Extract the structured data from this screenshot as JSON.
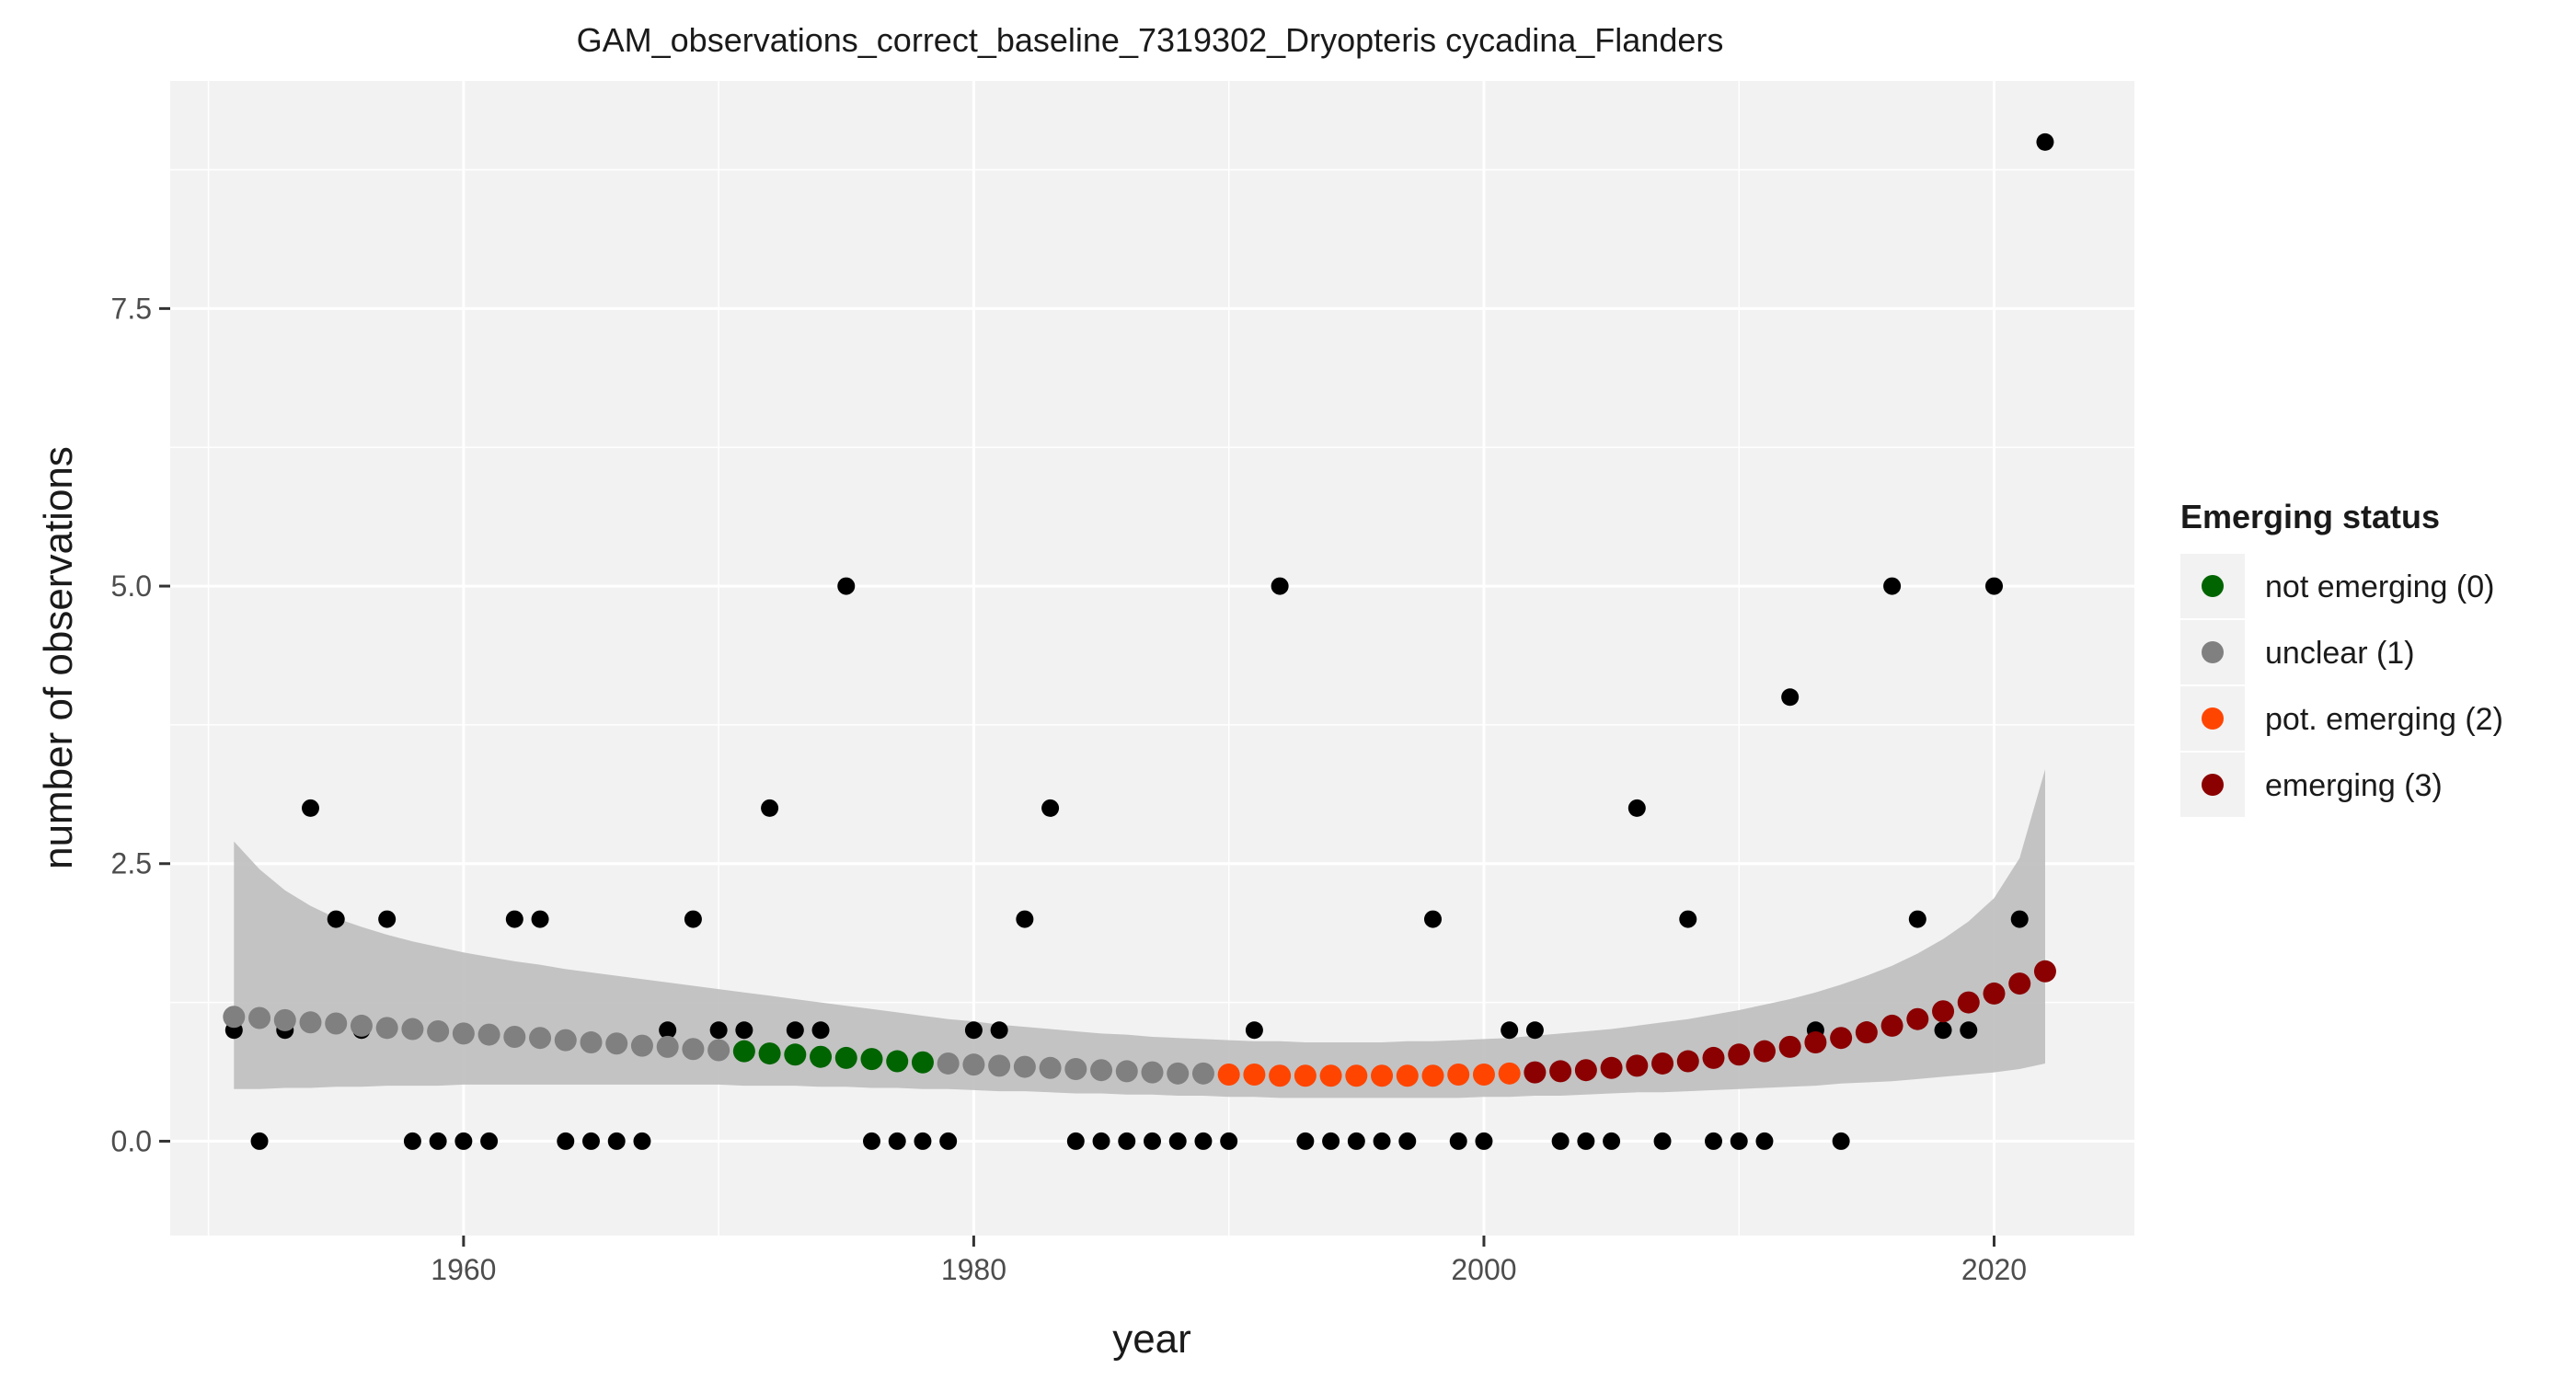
{
  "chart_data": {
    "type": "scatter",
    "title": "GAM_observations_correct_baseline_7319302_Dryopteris cycadina_Flanders",
    "xlabel": "year",
    "ylabel": "number of observations",
    "xlim": [
      1948.5,
      2025.5
    ],
    "ylim": [
      -0.85,
      9.55
    ],
    "x_ticks": [
      1960,
      1980,
      2000,
      2020
    ],
    "x_tick_labels": [
      "1960",
      "1980",
      "2000",
      "2020"
    ],
    "y_ticks": [
      0.0,
      2.5,
      5.0,
      7.5
    ],
    "y_tick_labels": [
      "0.0",
      "2.5",
      "5.0",
      "7.5"
    ],
    "grid": true,
    "legend": {
      "title": "Emerging status",
      "position": "right",
      "entries": [
        {
          "label": "not emerging (0)",
          "color": "#006400"
        },
        {
          "label": "unclear (1)",
          "color": "#808080"
        },
        {
          "label": "pot. emerging (2)",
          "color": "#FF4500"
        },
        {
          "label": "emerging (3)",
          "color": "#8B0000"
        }
      ]
    },
    "status_colors": {
      "0": "#006400",
      "1": "#808080",
      "2": "#FF4500",
      "3": "#8B0000"
    },
    "observations": {
      "x": [
        1951,
        1952,
        1953,
        1954,
        1955,
        1956,
        1957,
        1958,
        1959,
        1960,
        1961,
        1962,
        1963,
        1964,
        1965,
        1966,
        1967,
        1968,
        1969,
        1970,
        1971,
        1972,
        1973,
        1974,
        1975,
        1976,
        1977,
        1978,
        1979,
        1980,
        1981,
        1982,
        1983,
        1984,
        1985,
        1986,
        1987,
        1988,
        1989,
        1990,
        1991,
        1992,
        1993,
        1994,
        1995,
        1996,
        1997,
        1998,
        1999,
        2000,
        2001,
        2002,
        2003,
        2004,
        2005,
        2006,
        2007,
        2008,
        2009,
        2010,
        2011,
        2012,
        2013,
        2014,
        2015,
        2016,
        2017,
        2018,
        2019,
        2020,
        2021,
        2022
      ],
      "y": [
        1,
        0,
        1,
        3,
        2,
        1,
        2,
        0,
        0,
        0,
        0,
        2,
        2,
        0,
        0,
        0,
        0,
        1,
        2,
        1,
        1,
        3,
        1,
        1,
        5,
        0,
        0,
        0,
        0,
        1,
        1,
        2,
        3,
        0,
        0,
        0,
        0,
        0,
        0,
        0,
        1,
        5,
        0,
        0,
        0,
        0,
        0,
        2,
        0,
        0,
        1,
        1,
        0,
        0,
        0,
        3,
        0,
        2,
        0,
        0,
        0,
        4,
        1,
        0,
        1,
        5,
        2,
        1,
        1,
        5,
        2,
        9
      ]
    },
    "fit": {
      "x": [
        1951,
        1952,
        1953,
        1954,
        1955,
        1956,
        1957,
        1958,
        1959,
        1960,
        1961,
        1962,
        1963,
        1964,
        1965,
        1966,
        1967,
        1968,
        1969,
        1970,
        1971,
        1972,
        1973,
        1974,
        1975,
        1976,
        1977,
        1978,
        1979,
        1980,
        1981,
        1982,
        1983,
        1984,
        1985,
        1986,
        1987,
        1988,
        1989,
        1990,
        1991,
        1992,
        1993,
        1994,
        1995,
        1996,
        1997,
        1998,
        1999,
        2000,
        2001,
        2002,
        2003,
        2004,
        2005,
        2006,
        2007,
        2008,
        2009,
        2010,
        2011,
        2012,
        2013,
        2014,
        2015,
        2016,
        2017,
        2018,
        2019,
        2020,
        2021,
        2022
      ],
      "y": [
        1.12,
        1.11,
        1.09,
        1.07,
        1.06,
        1.04,
        1.02,
        1.01,
        0.99,
        0.97,
        0.96,
        0.94,
        0.93,
        0.91,
        0.89,
        0.88,
        0.86,
        0.85,
        0.83,
        0.82,
        0.81,
        0.79,
        0.78,
        0.76,
        0.75,
        0.74,
        0.72,
        0.71,
        0.7,
        0.69,
        0.68,
        0.67,
        0.66,
        0.65,
        0.64,
        0.63,
        0.62,
        0.61,
        0.61,
        0.6,
        0.6,
        0.59,
        0.59,
        0.59,
        0.59,
        0.59,
        0.59,
        0.59,
        0.6,
        0.6,
        0.61,
        0.62,
        0.63,
        0.64,
        0.66,
        0.68,
        0.7,
        0.72,
        0.75,
        0.78,
        0.81,
        0.85,
        0.89,
        0.93,
        0.98,
        1.04,
        1.1,
        1.17,
        1.25,
        1.33,
        1.42,
        1.53
      ],
      "status": [
        1,
        1,
        1,
        1,
        1,
        1,
        1,
        1,
        1,
        1,
        1,
        1,
        1,
        1,
        1,
        1,
        1,
        1,
        1,
        1,
        0,
        0,
        0,
        0,
        0,
        0,
        0,
        0,
        1,
        1,
        1,
        1,
        1,
        1,
        1,
        1,
        1,
        1,
        1,
        2,
        2,
        2,
        2,
        2,
        2,
        2,
        2,
        2,
        2,
        2,
        2,
        3,
        3,
        3,
        3,
        3,
        3,
        3,
        3,
        3,
        3,
        3,
        3,
        3,
        3,
        3,
        3,
        3,
        3,
        3,
        3,
        3
      ],
      "ci_lower": [
        0.47,
        0.47,
        0.48,
        0.48,
        0.49,
        0.49,
        0.5,
        0.5,
        0.5,
        0.51,
        0.51,
        0.51,
        0.51,
        0.51,
        0.51,
        0.51,
        0.51,
        0.51,
        0.51,
        0.51,
        0.5,
        0.5,
        0.5,
        0.49,
        0.49,
        0.48,
        0.48,
        0.47,
        0.47,
        0.46,
        0.45,
        0.45,
        0.44,
        0.43,
        0.43,
        0.42,
        0.42,
        0.41,
        0.41,
        0.4,
        0.4,
        0.39,
        0.39,
        0.39,
        0.39,
        0.39,
        0.39,
        0.39,
        0.39,
        0.4,
        0.4,
        0.41,
        0.41,
        0.42,
        0.43,
        0.44,
        0.44,
        0.45,
        0.46,
        0.47,
        0.48,
        0.49,
        0.5,
        0.52,
        0.53,
        0.54,
        0.56,
        0.58,
        0.6,
        0.62,
        0.65,
        0.7
      ],
      "ci_upper": [
        2.7,
        2.45,
        2.26,
        2.12,
        2.01,
        1.93,
        1.86,
        1.8,
        1.75,
        1.7,
        1.66,
        1.62,
        1.59,
        1.55,
        1.52,
        1.49,
        1.46,
        1.43,
        1.4,
        1.37,
        1.34,
        1.31,
        1.28,
        1.25,
        1.22,
        1.19,
        1.16,
        1.13,
        1.1,
        1.08,
        1.05,
        1.03,
        1.01,
        0.99,
        0.97,
        0.96,
        0.94,
        0.93,
        0.92,
        0.91,
        0.9,
        0.9,
        0.89,
        0.89,
        0.89,
        0.89,
        0.9,
        0.9,
        0.91,
        0.92,
        0.93,
        0.95,
        0.97,
        0.99,
        1.01,
        1.04,
        1.07,
        1.1,
        1.14,
        1.18,
        1.23,
        1.28,
        1.34,
        1.41,
        1.49,
        1.58,
        1.69,
        1.82,
        1.98,
        2.19,
        2.55,
        3.35
      ]
    }
  }
}
